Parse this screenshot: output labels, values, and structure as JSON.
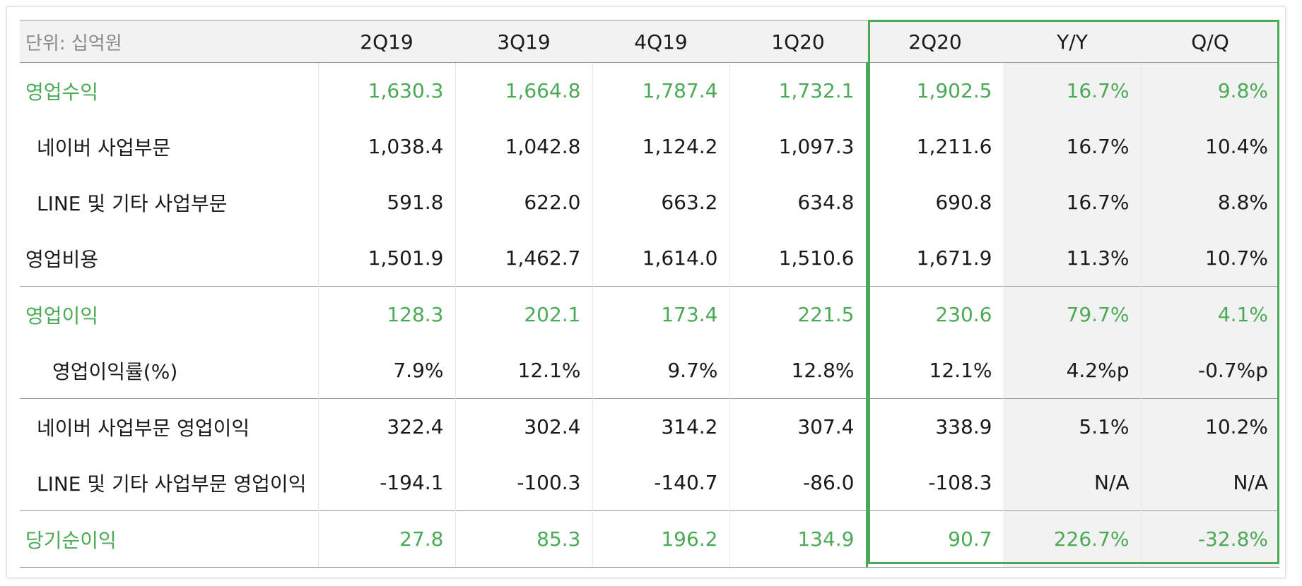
{
  "table": {
    "unit_label": "단위: 십억원",
    "columns": [
      "2Q19",
      "3Q19",
      "4Q19",
      "1Q20",
      "2Q20",
      "Y/Y",
      "Q/Q"
    ],
    "rows": [
      {
        "label": "영업수익",
        "values": [
          "1,630.3",
          "1,664.8",
          "1,787.4",
          "1,732.1",
          "1,902.5",
          "16.7%",
          "9.8%"
        ]
      },
      {
        "label": "네이버 사업부문",
        "values": [
          "1,038.4",
          "1,042.8",
          "1,124.2",
          "1,097.3",
          "1,211.6",
          "16.7%",
          "10.4%"
        ]
      },
      {
        "label": "LINE 및 기타 사업부문",
        "values": [
          "591.8",
          "622.0",
          "663.2",
          "634.8",
          "690.8",
          "16.7%",
          "8.8%"
        ]
      },
      {
        "label": "영업비용",
        "values": [
          "1,501.9",
          "1,462.7",
          "1,614.0",
          "1,510.6",
          "1,671.9",
          "11.3%",
          "10.7%"
        ]
      },
      {
        "label": "영업이익",
        "values": [
          "128.3",
          "202.1",
          "173.4",
          "221.5",
          "230.6",
          "79.7%",
          "4.1%"
        ]
      },
      {
        "label": "영업이익률(%)",
        "values": [
          "7.9%",
          "12.1%",
          "9.7%",
          "12.8%",
          "12.1%",
          "4.2%p",
          "-0.7%p"
        ]
      },
      {
        "label": "네이버 사업부문 영업이익",
        "values": [
          "322.4",
          "302.4",
          "314.2",
          "307.4",
          "338.9",
          "5.1%",
          "10.2%"
        ]
      },
      {
        "label": "LINE 및 기타 사업부문 영업이익",
        "values": [
          "-194.1",
          "-100.3",
          "-140.7",
          "-86.0",
          "-108.3",
          "N/A",
          "N/A"
        ]
      },
      {
        "label": "당기순이익",
        "values": [
          "27.8",
          "85.3",
          "196.2",
          "134.9",
          "90.7",
          "226.7%",
          "-32.8%"
        ]
      }
    ]
  },
  "colors": {
    "accent_green": "#4aaa55",
    "header_bg": "#f2f2f2",
    "text": "#1a1a1a"
  }
}
